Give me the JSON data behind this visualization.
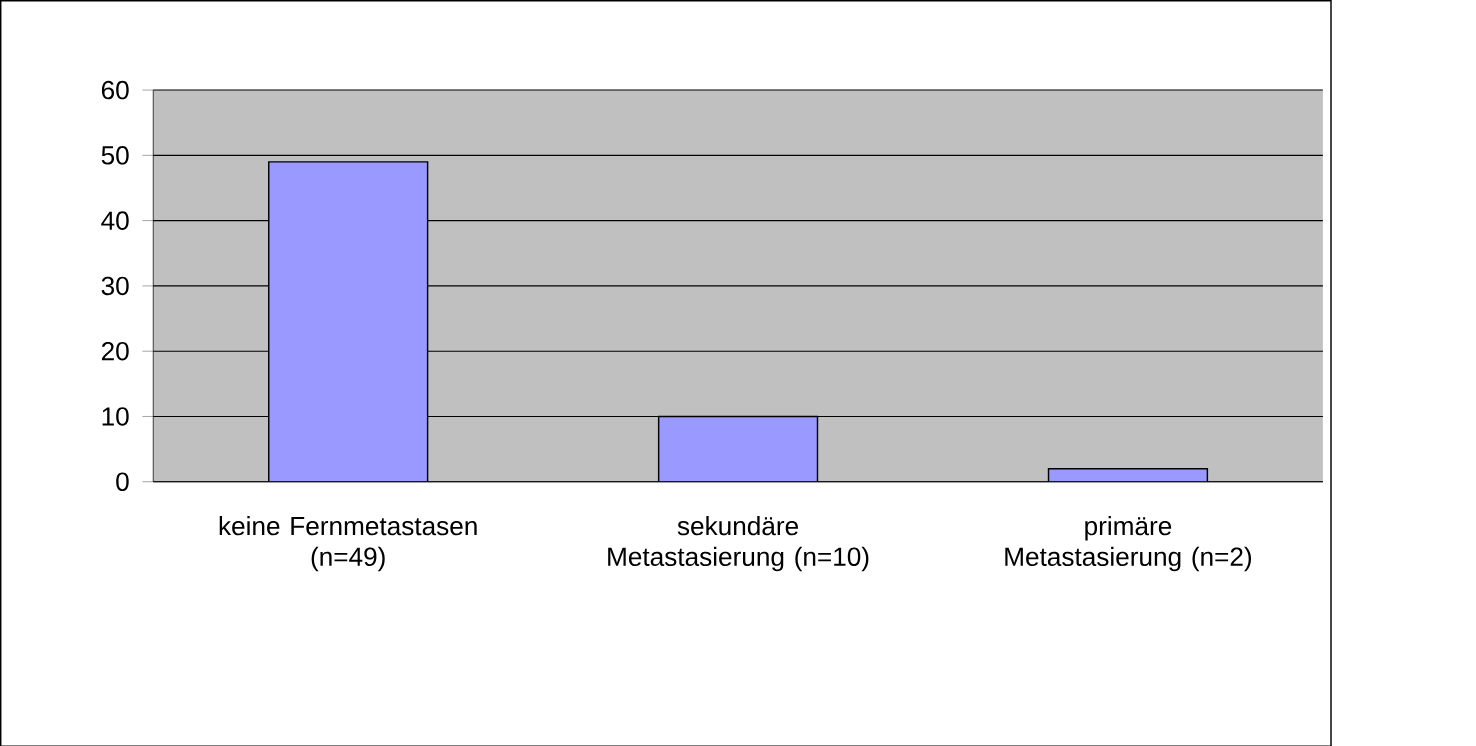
{
  "chart_data": {
    "type": "bar",
    "categories": [
      "keine Fernmetastasen (n=49)",
      "sekundäre Metastasierung (n=10)",
      "primäre Metastasierung (n=2)"
    ],
    "values": [
      49,
      10,
      2
    ],
    "color": "#9999ff",
    "ylim": [
      0,
      60
    ],
    "yticks": [
      0,
      10,
      20,
      30,
      40,
      50,
      60
    ],
    "grid": "y"
  }
}
